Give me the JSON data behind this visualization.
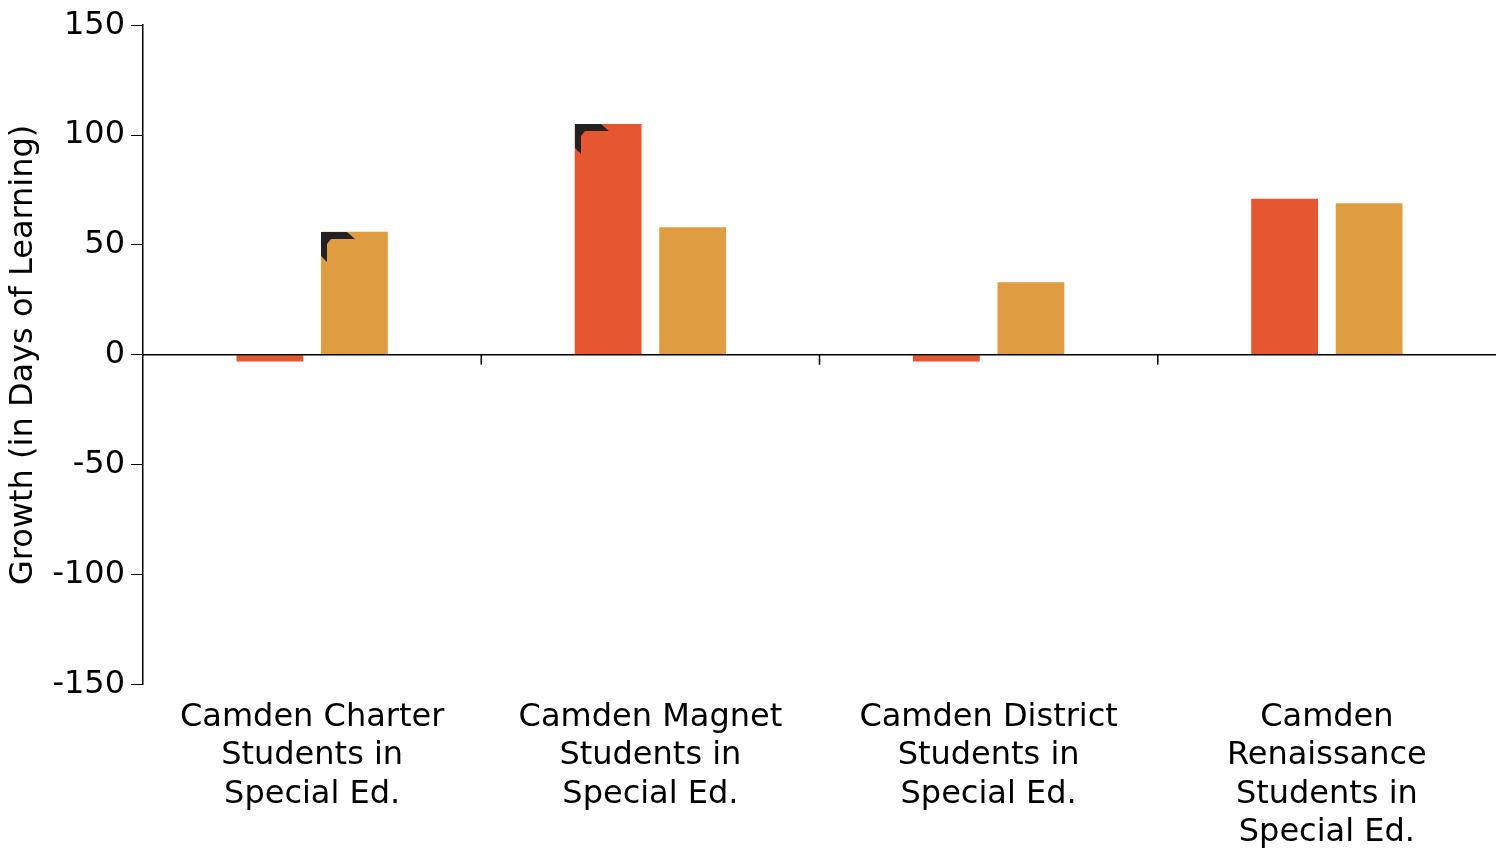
{
  "chart_data": {
    "type": "bar",
    "ylabel": "Growth (in Days of Learning)",
    "categories": [
      "Camden Charter Students in Special Ed.",
      "Camden Magnet Students in Special Ed.",
      "Camden District Students in Special Ed.",
      "Camden Renaissance Students in Special Ed."
    ],
    "series": [
      {
        "color": "#e65731",
        "values": [
          -3,
          105,
          -3,
          71
        ]
      },
      {
        "color": "#e09c41",
        "values": [
          56,
          58,
          33,
          69
        ]
      }
    ],
    "ylim": [
      -150,
      150
    ],
    "yticks": [
      -150,
      -100,
      -50,
      0,
      50,
      100,
      150
    ],
    "ref_lines": [
      {
        "axis": "y",
        "value": 0,
        "color": "#000000"
      }
    ],
    "grid": false,
    "legend": false
  }
}
